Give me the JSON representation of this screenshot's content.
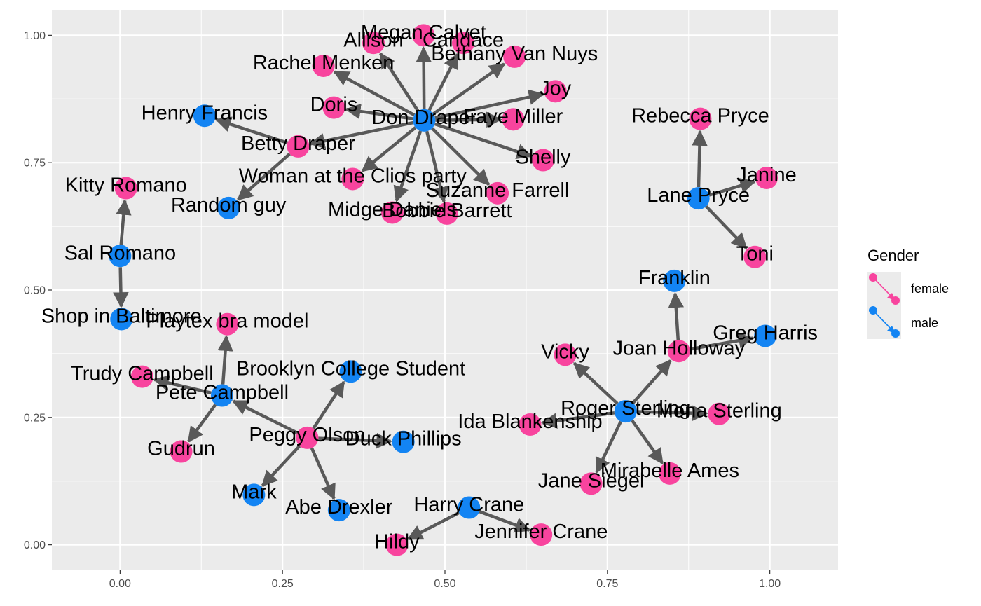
{
  "chart_data": {
    "type": "scatter",
    "subtype": "network",
    "title": "",
    "xlabel": "",
    "ylabel": "",
    "xlim": [
      -0.105,
      1.105
    ],
    "ylim": [
      -0.05,
      1.05
    ],
    "x_ticks": [
      0.0,
      0.25,
      0.5,
      0.75,
      1.0
    ],
    "x_tick_labels": [
      "0.00",
      "0.25",
      "0.50",
      "0.75",
      "1.00"
    ],
    "y_ticks": [
      0.0,
      0.25,
      0.5,
      0.75,
      1.0
    ],
    "y_tick_labels": [
      "0.00",
      "0.25",
      "0.50",
      "0.75",
      "1.00"
    ],
    "grid": true,
    "colors": {
      "female": "#f8449e",
      "male": "#1384f3",
      "edge": "#595959",
      "panel": "#ebebeb",
      "grid": "#ffffff"
    },
    "legend": {
      "title": "Gender",
      "position": "right",
      "entries": [
        {
          "label": "female",
          "color": "#f8449e"
        },
        {
          "label": "male",
          "color": "#1384f3"
        }
      ]
    },
    "nodes": [
      {
        "name": "Don Draper",
        "x": 0.468,
        "y": 0.833,
        "gender": "male"
      },
      {
        "name": "Megan Calvet",
        "x": 0.467,
        "y": 1.0,
        "gender": "female"
      },
      {
        "name": "Allison",
        "x": 0.39,
        "y": 0.985,
        "gender": "female"
      },
      {
        "name": "Candace",
        "x": 0.528,
        "y": 0.985,
        "gender": "female"
      },
      {
        "name": "Bethany Van Nuys",
        "x": 0.607,
        "y": 0.958,
        "gender": "female"
      },
      {
        "name": "Rachel Menken",
        "x": 0.313,
        "y": 0.94,
        "gender": "female"
      },
      {
        "name": "Joy",
        "x": 0.67,
        "y": 0.89,
        "gender": "female"
      },
      {
        "name": "Doris",
        "x": 0.329,
        "y": 0.858,
        "gender": "female"
      },
      {
        "name": "Faye Miller",
        "x": 0.605,
        "y": 0.835,
        "gender": "female"
      },
      {
        "name": "Shelly",
        "x": 0.651,
        "y": 0.755,
        "gender": "female"
      },
      {
        "name": "Betty Draper",
        "x": 0.274,
        "y": 0.782,
        "gender": "female"
      },
      {
        "name": "Henry Francis",
        "x": 0.13,
        "y": 0.842,
        "gender": "male"
      },
      {
        "name": "Random guy",
        "x": 0.167,
        "y": 0.661,
        "gender": "male"
      },
      {
        "name": "Woman at the Clios party",
        "x": 0.358,
        "y": 0.718,
        "gender": "female"
      },
      {
        "name": "Suzanne Farrell",
        "x": 0.581,
        "y": 0.69,
        "gender": "female"
      },
      {
        "name": "Midge Daniels",
        "x": 0.419,
        "y": 0.652,
        "gender": "female"
      },
      {
        "name": "Bobbie Barrett",
        "x": 0.503,
        "y": 0.65,
        "gender": "female"
      },
      {
        "name": "Kitty Romano",
        "x": 0.009,
        "y": 0.7,
        "gender": "female"
      },
      {
        "name": "Sal Romano",
        "x": 0.0,
        "y": 0.567,
        "gender": "male"
      },
      {
        "name": "Shop in Baltimore",
        "x": 0.002,
        "y": 0.443,
        "gender": "male"
      },
      {
        "name": "Playtex bra model",
        "x": 0.165,
        "y": 0.433,
        "gender": "female"
      },
      {
        "name": "Trudy Campbell",
        "x": 0.034,
        "y": 0.33,
        "gender": "female"
      },
      {
        "name": "Pete Campbell",
        "x": 0.157,
        "y": 0.293,
        "gender": "male"
      },
      {
        "name": "Brooklyn College Student",
        "x": 0.355,
        "y": 0.34,
        "gender": "male"
      },
      {
        "name": "Gudrun",
        "x": 0.094,
        "y": 0.183,
        "gender": "female"
      },
      {
        "name": "Peggy Olson",
        "x": 0.288,
        "y": 0.21,
        "gender": "female"
      },
      {
        "name": "Duck Phillips",
        "x": 0.436,
        "y": 0.202,
        "gender": "male"
      },
      {
        "name": "Mark",
        "x": 0.206,
        "y": 0.098,
        "gender": "male"
      },
      {
        "name": "Abe Drexler",
        "x": 0.337,
        "y": 0.068,
        "gender": "male"
      },
      {
        "name": "Harry Crane",
        "x": 0.537,
        "y": 0.073,
        "gender": "male"
      },
      {
        "name": "Hildy",
        "x": 0.426,
        "y": 0.0,
        "gender": "female"
      },
      {
        "name": "Jennifer Crane",
        "x": 0.648,
        "y": 0.02,
        "gender": "female"
      },
      {
        "name": "Rebecca Pryce",
        "x": 0.893,
        "y": 0.836,
        "gender": "female"
      },
      {
        "name": "Lane Pryce",
        "x": 0.89,
        "y": 0.68,
        "gender": "male"
      },
      {
        "name": "Janine",
        "x": 0.995,
        "y": 0.72,
        "gender": "female"
      },
      {
        "name": "Toni",
        "x": 0.977,
        "y": 0.565,
        "gender": "female"
      },
      {
        "name": "Franklin",
        "x": 0.853,
        "y": 0.518,
        "gender": "male"
      },
      {
        "name": "Greg Harris",
        "x": 0.993,
        "y": 0.41,
        "gender": "male"
      },
      {
        "name": "Joan Holloway",
        "x": 0.86,
        "y": 0.38,
        "gender": "female"
      },
      {
        "name": "Vicky",
        "x": 0.685,
        "y": 0.373,
        "gender": "female"
      },
      {
        "name": "Roger Sterling",
        "x": 0.778,
        "y": 0.262,
        "gender": "male"
      },
      {
        "name": "Mona Sterling",
        "x": 0.922,
        "y": 0.257,
        "gender": "female"
      },
      {
        "name": "Ida Blankenship",
        "x": 0.631,
        "y": 0.236,
        "gender": "female"
      },
      {
        "name": "Mirabelle Ames",
        "x": 0.846,
        "y": 0.14,
        "gender": "female"
      },
      {
        "name": "Jane Siegel",
        "x": 0.725,
        "y": 0.12,
        "gender": "female"
      }
    ],
    "edges": [
      [
        "Don Draper",
        "Megan Calvet"
      ],
      [
        "Don Draper",
        "Allison"
      ],
      [
        "Don Draper",
        "Candace"
      ],
      [
        "Don Draper",
        "Bethany Van Nuys"
      ],
      [
        "Don Draper",
        "Rachel Menken"
      ],
      [
        "Don Draper",
        "Joy"
      ],
      [
        "Don Draper",
        "Doris"
      ],
      [
        "Don Draper",
        "Faye Miller"
      ],
      [
        "Don Draper",
        "Shelly"
      ],
      [
        "Don Draper",
        "Betty Draper"
      ],
      [
        "Don Draper",
        "Woman at the Clios party"
      ],
      [
        "Don Draper",
        "Suzanne Farrell"
      ],
      [
        "Don Draper",
        "Midge Daniels"
      ],
      [
        "Don Draper",
        "Bobbie Barrett"
      ],
      [
        "Betty Draper",
        "Henry Francis"
      ],
      [
        "Betty Draper",
        "Random guy"
      ],
      [
        "Sal Romano",
        "Kitty Romano"
      ],
      [
        "Sal Romano",
        "Shop in Baltimore"
      ],
      [
        "Pete Campbell",
        "Trudy Campbell"
      ],
      [
        "Pete Campbell",
        "Playtex bra model"
      ],
      [
        "Pete Campbell",
        "Gudrun"
      ],
      [
        "Peggy Olson",
        "Pete Campbell"
      ],
      [
        "Peggy Olson",
        "Brooklyn College Student"
      ],
      [
        "Peggy Olson",
        "Duck Phillips"
      ],
      [
        "Peggy Olson",
        "Mark"
      ],
      [
        "Peggy Olson",
        "Abe Drexler"
      ],
      [
        "Harry Crane",
        "Hildy"
      ],
      [
        "Harry Crane",
        "Jennifer Crane"
      ],
      [
        "Lane Pryce",
        "Rebecca Pryce"
      ],
      [
        "Lane Pryce",
        "Janine"
      ],
      [
        "Lane Pryce",
        "Toni"
      ],
      [
        "Joan Holloway",
        "Franklin"
      ],
      [
        "Joan Holloway",
        "Greg Harris"
      ],
      [
        "Roger Sterling",
        "Joan Holloway"
      ],
      [
        "Roger Sterling",
        "Vicky"
      ],
      [
        "Roger Sterling",
        "Mona Sterling"
      ],
      [
        "Roger Sterling",
        "Ida Blankenship"
      ],
      [
        "Roger Sterling",
        "Mirabelle Ames"
      ],
      [
        "Roger Sterling",
        "Jane Siegel"
      ]
    ]
  }
}
